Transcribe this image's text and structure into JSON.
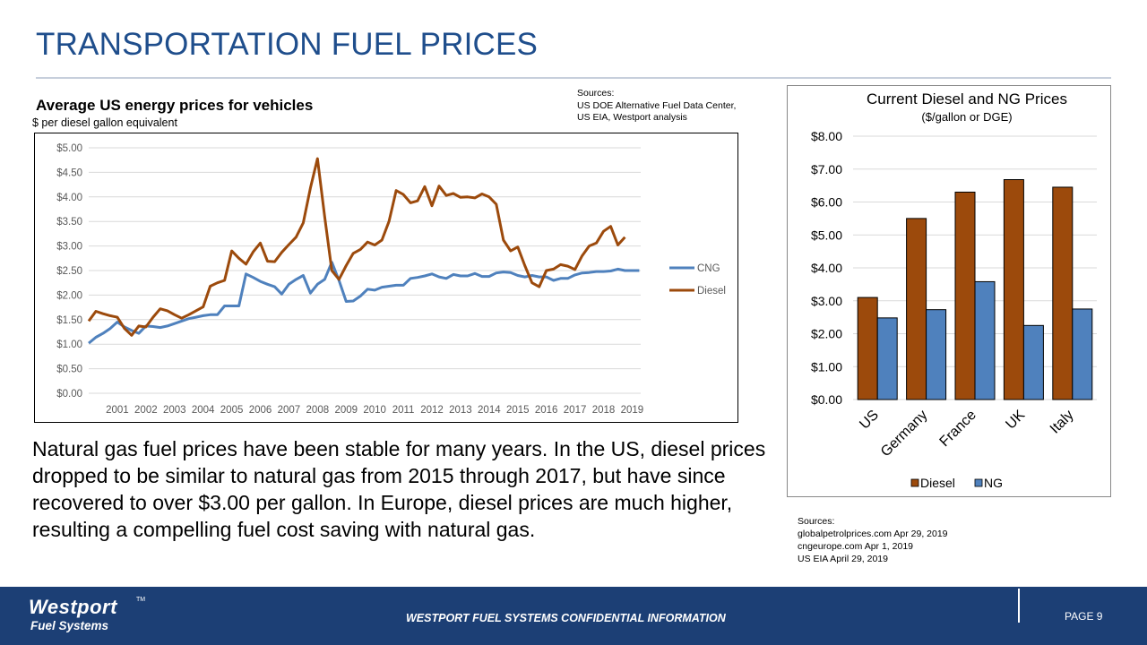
{
  "page_title": "TRANSPORTATION FUEL PRICES",
  "left_chart": {
    "title": "Average US energy prices for vehicles",
    "subtitle": "$ per diesel gallon equivalent"
  },
  "sources_top": [
    "Sources:",
    "US DOE Alternative Fuel Data Center,",
    "US EIA, Westport analysis"
  ],
  "body_text": "Natural gas fuel prices have been stable for many years.  In the US, diesel prices dropped to be similar to natural gas from 2015 through 2017, but have since recovered to over $3.00 per gallon.  In Europe, diesel prices are much higher, resulting a compelling fuel cost saving with natural gas.",
  "sources_bottom": [
    "Sources:",
    "globalpetrolprices.com  Apr 29, 2019",
    "cngeurope.com  Apr 1, 2019",
    "US EIA  April 29, 2019"
  ],
  "footer": {
    "logo_line1": "Westport",
    "logo_tm": "TM",
    "logo_line2": "Fuel Systems",
    "confidential": "WESTPORT FUEL SYSTEMS CONFIDENTIAL INFORMATION",
    "page": "PAGE 9"
  },
  "colors": {
    "title_blue": "#1f4e8c",
    "cng": "#4f81bd",
    "diesel": "#9c4a0c",
    "ng_bar": "#4f81bd",
    "footer": "#1c3f75"
  },
  "chart_data": [
    {
      "type": "line",
      "title": "Average US energy prices for vehicles",
      "ylabel": "$ per diesel gallon equivalent",
      "ylim": [
        0,
        5
      ],
      "y_ticks": [
        "$0.00",
        "$0.50",
        "$1.00",
        "$1.50",
        "$2.00",
        "$2.50",
        "$3.00",
        "$3.50",
        "$4.00",
        "$4.50",
        "$5.00"
      ],
      "x_tick_labels": [
        "2001",
        "2002",
        "2003",
        "2004",
        "2005",
        "2006",
        "2007",
        "2008",
        "2009",
        "2010",
        "2011",
        "2012",
        "2013",
        "2014",
        "2015",
        "2016",
        "2017",
        "2018",
        "2019"
      ],
      "xlim": [
        2000.0,
        2019.3
      ],
      "legend_position": "right",
      "grid": true,
      "series": [
        {
          "name": "CNG",
          "color": "#4f81bd",
          "points": [
            [
              2000.0,
              1.02
            ],
            [
              2000.25,
              1.14
            ],
            [
              2000.5,
              1.22
            ],
            [
              2000.75,
              1.32
            ],
            [
              2001.0,
              1.45
            ],
            [
              2001.25,
              1.35
            ],
            [
              2001.5,
              1.28
            ],
            [
              2001.75,
              1.22
            ],
            [
              2002.0,
              1.37
            ],
            [
              2002.25,
              1.36
            ],
            [
              2002.5,
              1.34
            ],
            [
              2002.75,
              1.37
            ],
            [
              2003.0,
              1.42
            ],
            [
              2003.25,
              1.47
            ],
            [
              2003.5,
              1.52
            ],
            [
              2003.75,
              1.55
            ],
            [
              2004.0,
              1.58
            ],
            [
              2004.25,
              1.6
            ],
            [
              2004.5,
              1.6
            ],
            [
              2004.75,
              1.78
            ],
            [
              2005.0,
              1.78
            ],
            [
              2005.25,
              1.78
            ],
            [
              2005.5,
              2.43
            ],
            [
              2005.75,
              2.36
            ],
            [
              2006.0,
              2.28
            ],
            [
              2006.25,
              2.22
            ],
            [
              2006.5,
              2.17
            ],
            [
              2006.75,
              2.02
            ],
            [
              2007.0,
              2.22
            ],
            [
              2007.25,
              2.32
            ],
            [
              2007.5,
              2.4
            ],
            [
              2007.75,
              2.04
            ],
            [
              2008.0,
              2.22
            ],
            [
              2008.25,
              2.32
            ],
            [
              2008.5,
              2.67
            ],
            [
              2008.75,
              2.3
            ],
            [
              2009.0,
              1.87
            ],
            [
              2009.25,
              1.88
            ],
            [
              2009.5,
              1.98
            ],
            [
              2009.75,
              2.12
            ],
            [
              2010.0,
              2.1
            ],
            [
              2010.25,
              2.16
            ],
            [
              2010.5,
              2.18
            ],
            [
              2010.75,
              2.2
            ],
            [
              2011.0,
              2.2
            ],
            [
              2011.25,
              2.34
            ],
            [
              2011.5,
              2.36
            ],
            [
              2011.75,
              2.39
            ],
            [
              2012.0,
              2.43
            ],
            [
              2012.25,
              2.37
            ],
            [
              2012.5,
              2.34
            ],
            [
              2012.75,
              2.42
            ],
            [
              2013.0,
              2.39
            ],
            [
              2013.25,
              2.39
            ],
            [
              2013.5,
              2.44
            ],
            [
              2013.75,
              2.38
            ],
            [
              2014.0,
              2.38
            ],
            [
              2014.25,
              2.45
            ],
            [
              2014.5,
              2.47
            ],
            [
              2014.75,
              2.46
            ],
            [
              2015.0,
              2.4
            ],
            [
              2015.25,
              2.37
            ],
            [
              2015.5,
              2.4
            ],
            [
              2015.75,
              2.37
            ],
            [
              2016.0,
              2.37
            ],
            [
              2016.25,
              2.3
            ],
            [
              2016.5,
              2.34
            ],
            [
              2016.75,
              2.34
            ],
            [
              2017.0,
              2.41
            ],
            [
              2017.25,
              2.45
            ],
            [
              2017.5,
              2.46
            ],
            [
              2017.75,
              2.48
            ],
            [
              2018.0,
              2.48
            ],
            [
              2018.25,
              2.49
            ],
            [
              2018.5,
              2.53
            ],
            [
              2018.75,
              2.5
            ],
            [
              2019.0,
              2.5
            ],
            [
              2019.25,
              2.5
            ]
          ]
        },
        {
          "name": "Diesel",
          "color": "#9c4a0c",
          "points": [
            [
              2000.0,
              1.47
            ],
            [
              2000.25,
              1.67
            ],
            [
              2000.5,
              1.62
            ],
            [
              2000.75,
              1.58
            ],
            [
              2001.0,
              1.55
            ],
            [
              2001.25,
              1.32
            ],
            [
              2001.5,
              1.18
            ],
            [
              2001.75,
              1.37
            ],
            [
              2002.0,
              1.35
            ],
            [
              2002.25,
              1.55
            ],
            [
              2002.5,
              1.72
            ],
            [
              2002.75,
              1.68
            ],
            [
              2003.0,
              1.6
            ],
            [
              2003.25,
              1.53
            ],
            [
              2003.5,
              1.6
            ],
            [
              2003.75,
              1.68
            ],
            [
              2004.0,
              1.76
            ],
            [
              2004.25,
              2.18
            ],
            [
              2004.5,
              2.25
            ],
            [
              2004.75,
              2.3
            ],
            [
              2005.0,
              2.9
            ],
            [
              2005.25,
              2.75
            ],
            [
              2005.5,
              2.63
            ],
            [
              2005.75,
              2.88
            ],
            [
              2006.0,
              3.06
            ],
            [
              2006.25,
              2.69
            ],
            [
              2006.5,
              2.68
            ],
            [
              2006.75,
              2.87
            ],
            [
              2007.0,
              3.03
            ],
            [
              2007.25,
              3.18
            ],
            [
              2007.5,
              3.47
            ],
            [
              2007.75,
              4.18
            ],
            [
              2008.0,
              4.78
            ],
            [
              2008.25,
              3.6
            ],
            [
              2008.5,
              2.5
            ],
            [
              2008.75,
              2.32
            ],
            [
              2009.0,
              2.6
            ],
            [
              2009.25,
              2.85
            ],
            [
              2009.5,
              2.93
            ],
            [
              2009.75,
              3.08
            ],
            [
              2010.0,
              3.02
            ],
            [
              2010.25,
              3.12
            ],
            [
              2010.5,
              3.5
            ],
            [
              2010.75,
              4.13
            ],
            [
              2011.0,
              4.05
            ],
            [
              2011.25,
              3.88
            ],
            [
              2011.5,
              3.92
            ],
            [
              2011.75,
              4.21
            ],
            [
              2012.0,
              3.82
            ],
            [
              2012.25,
              4.22
            ],
            [
              2012.5,
              4.03
            ],
            [
              2012.75,
              4.07
            ],
            [
              2013.0,
              3.99
            ],
            [
              2013.25,
              4.0
            ],
            [
              2013.5,
              3.98
            ],
            [
              2013.75,
              4.06
            ],
            [
              2014.0,
              4.0
            ],
            [
              2014.25,
              3.85
            ],
            [
              2014.5,
              3.12
            ],
            [
              2014.75,
              2.9
            ],
            [
              2015.0,
              2.98
            ],
            [
              2015.25,
              2.6
            ],
            [
              2015.5,
              2.25
            ],
            [
              2015.75,
              2.17
            ],
            [
              2016.0,
              2.5
            ],
            [
              2016.25,
              2.53
            ],
            [
              2016.5,
              2.62
            ],
            [
              2016.75,
              2.59
            ],
            [
              2017.0,
              2.52
            ],
            [
              2017.25,
              2.8
            ],
            [
              2017.5,
              3.0
            ],
            [
              2017.75,
              3.06
            ],
            [
              2018.0,
              3.3
            ],
            [
              2018.25,
              3.4
            ],
            [
              2018.5,
              3.02
            ],
            [
              2018.75,
              3.18
            ]
          ]
        }
      ]
    },
    {
      "type": "bar",
      "title": "Current Diesel and NG Prices",
      "subtitle": "($/gallon or DGE)",
      "categories": [
        "US",
        "Germany",
        "France",
        "UK",
        "Italy"
      ],
      "ylim": [
        0,
        8
      ],
      "y_ticks": [
        "$0.00",
        "$1.00",
        "$2.00",
        "$3.00",
        "$4.00",
        "$5.00",
        "$6.00",
        "$7.00",
        "$8.00"
      ],
      "legend_position": "bottom",
      "grid": true,
      "series": [
        {
          "name": "Diesel",
          "color": "#9c4a0c",
          "values": [
            3.1,
            5.5,
            6.3,
            6.68,
            6.45
          ]
        },
        {
          "name": "NG",
          "color": "#4f81bd",
          "values": [
            2.48,
            2.73,
            3.58,
            2.25,
            2.75
          ]
        }
      ]
    }
  ]
}
